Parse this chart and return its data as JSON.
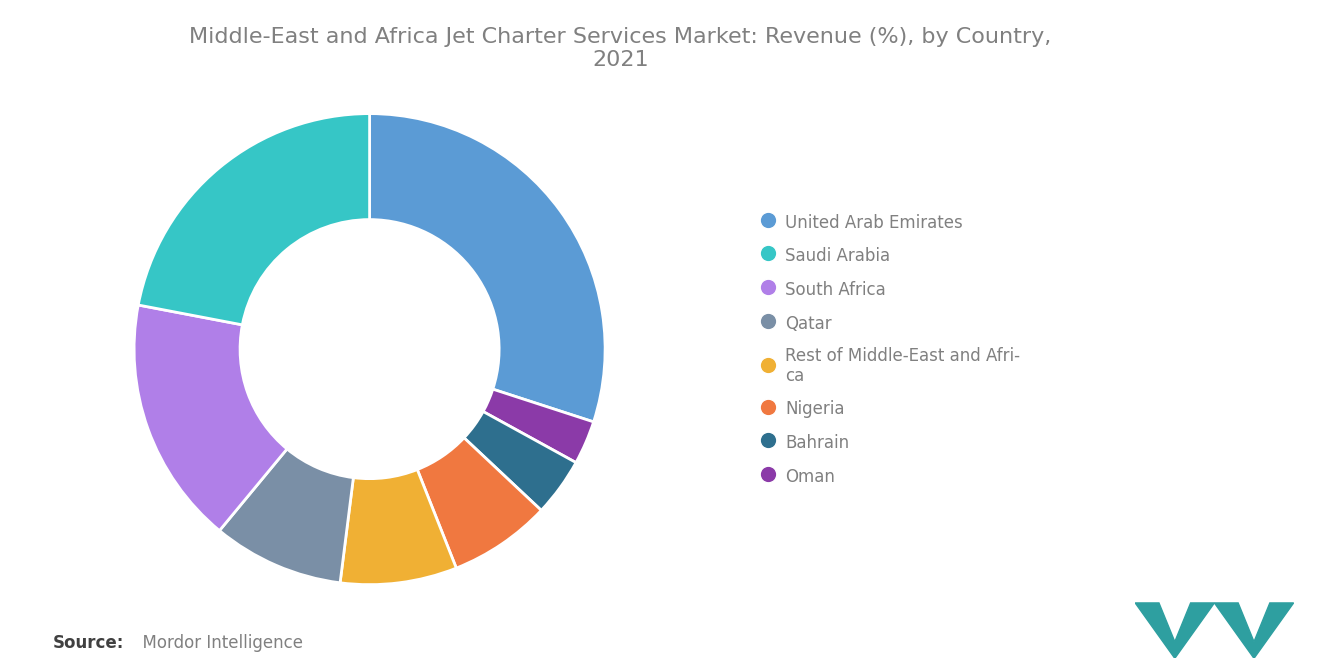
{
  "title": "Middle-East and Africa Jet Charter Services Market: Revenue (%), by Country,\n2021",
  "legend_labels": [
    "United Arab Emirates",
    "Saudi Arabia",
    "South Africa",
    "Qatar",
    "Rest of Middle-East and Afri-\nca",
    "Nigeria",
    "Bahrain",
    "Oman"
  ],
  "values": [
    30,
    22,
    17,
    9,
    8,
    7,
    4,
    3
  ],
  "colors": [
    "#5b9bd5",
    "#36c6c6",
    "#b07fe8",
    "#7a8fa6",
    "#f0b034",
    "#f07840",
    "#2e6f8e",
    "#8b3aa8"
  ],
  "background_color": "#ffffff",
  "title_fontsize": 16,
  "title_color": "#808080",
  "legend_fontsize": 12,
  "legend_text_color": "#808080",
  "source_bold": "Source:",
  "source_normal": "  Mordor Intelligence",
  "source_fontsize": 12,
  "logo_color": "#2e9fa0",
  "wedge_edge_color": "#ffffff",
  "wedge_linewidth": 2.0,
  "donut_width": 0.45
}
